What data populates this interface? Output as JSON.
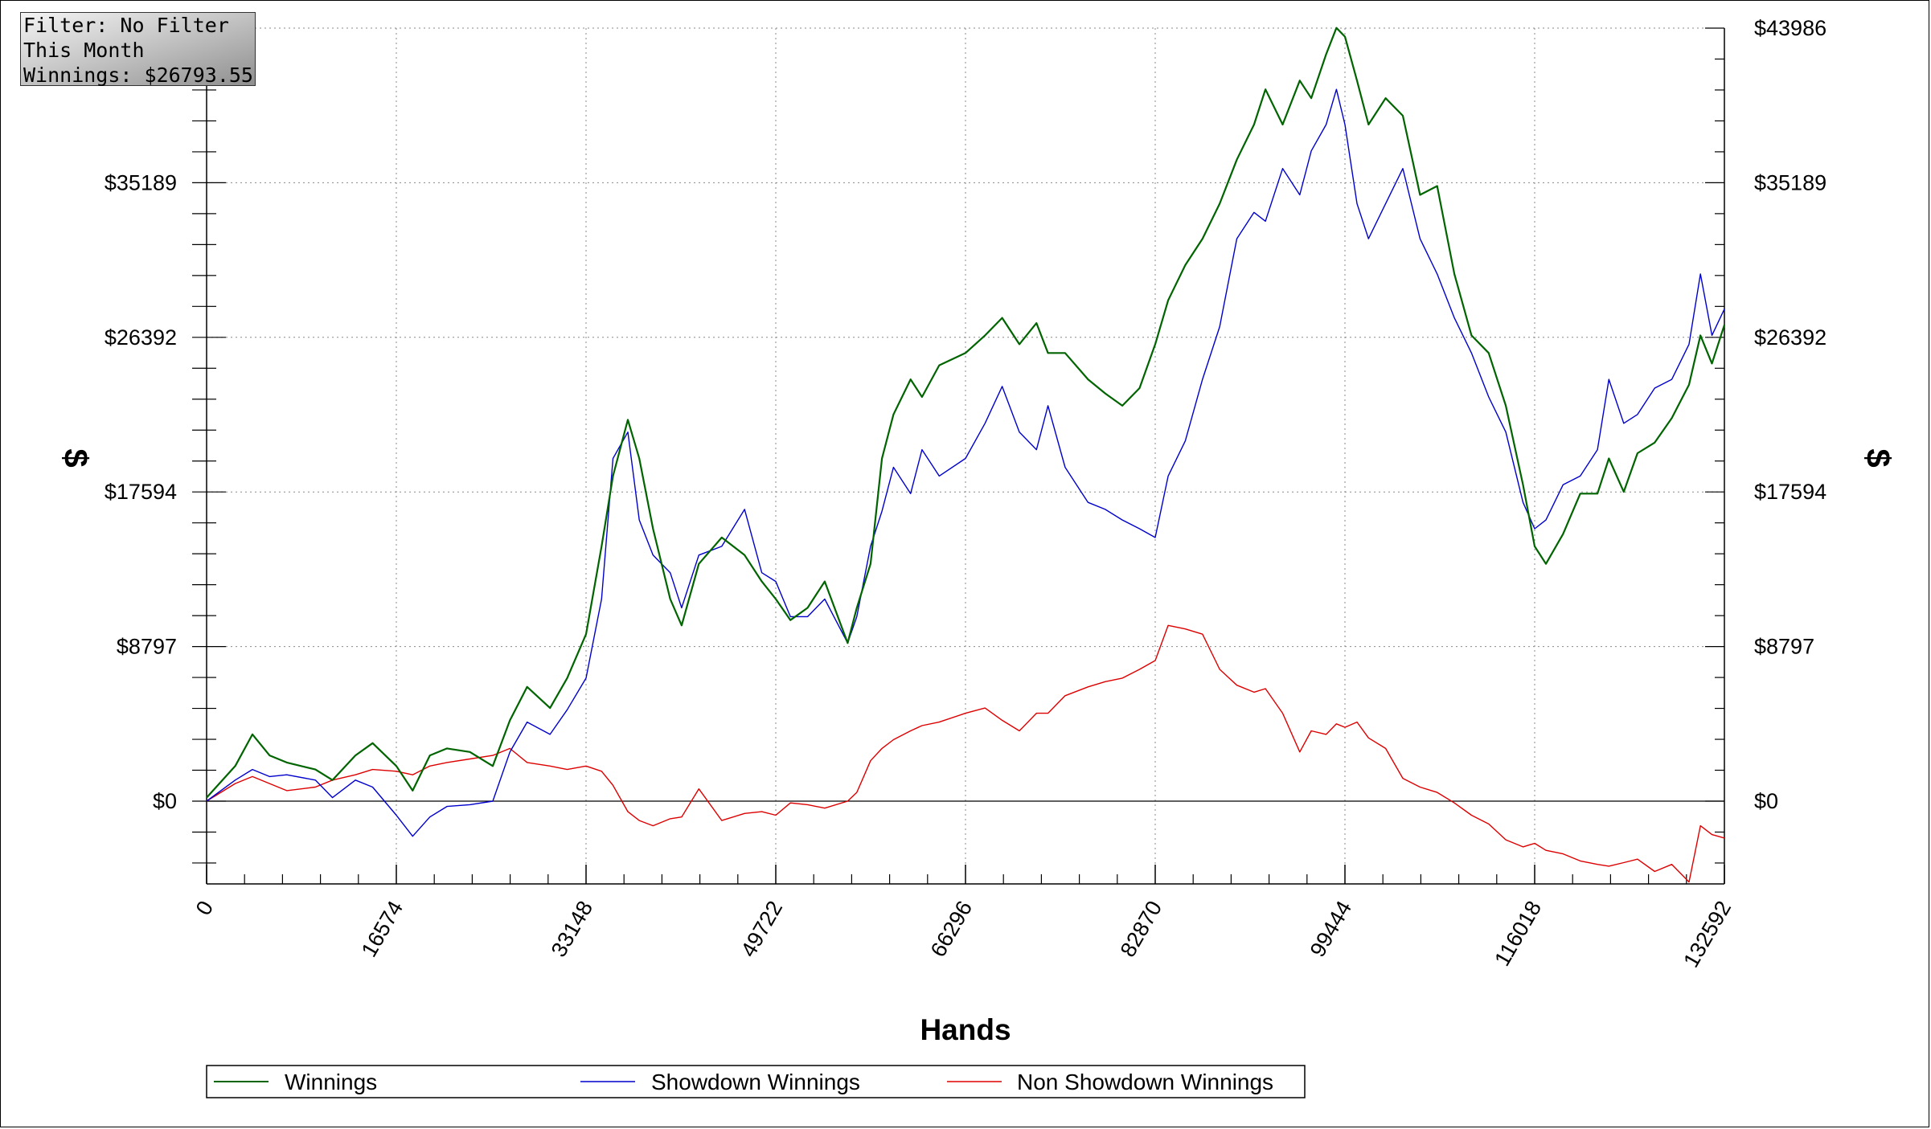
{
  "info_box": {
    "filter": "Filter: No Filter",
    "period": "This Month",
    "winnings": "Winnings: $26793.55"
  },
  "chart_data": {
    "type": "line",
    "title": "",
    "xlabel": "Hands",
    "ylabel": "$",
    "ylabel_right": "$",
    "xlim": [
      0,
      132592
    ],
    "ylim": [
      -4700,
      43986
    ],
    "x_ticks": [
      0,
      16574,
      33148,
      49722,
      66296,
      82870,
      99444,
      116018,
      132592
    ],
    "x_tick_labels": [
      "0",
      "16574",
      "33148",
      "49722",
      "66296",
      "82870",
      "99444",
      "116018",
      "132592"
    ],
    "y_ticks": [
      0,
      8797,
      17594,
      26392,
      35189,
      43986
    ],
    "y_tick_labels_left": [
      "$0",
      "$8797",
      "$17594",
      "$26392",
      "$35189"
    ],
    "y_tick_labels_right": [
      "$0",
      "$8797",
      "$17594",
      "$26392",
      "$35189",
      "$43986"
    ],
    "grid": true,
    "legend_position": "bottom",
    "colors": {
      "Winnings": "#006400",
      "Showdown Winnings": "#0000cc",
      "Non Showdown Winnings": "#dd0000"
    },
    "series": [
      {
        "name": "Winnings",
        "color": "#006400",
        "x": [
          0,
          2500,
          4000,
          5500,
          7000,
          9500,
          11000,
          13000,
          14500,
          16574,
          18000,
          19500,
          21000,
          23000,
          25000,
          26500,
          28000,
          30000,
          31500,
          33148,
          34500,
          35500,
          36800,
          37800,
          39000,
          40500,
          41500,
          43000,
          45000,
          47000,
          48500,
          49722,
          51000,
          52500,
          54000,
          56000,
          56800,
          58000,
          59000,
          60000,
          61500,
          62500,
          64000,
          66296,
          68000,
          69500,
          71000,
          72500,
          73500,
          75000,
          77000,
          78500,
          80000,
          81500,
          82870,
          84000,
          85500,
          87000,
          88500,
          90000,
          91500,
          92500,
          94000,
          95500,
          96500,
          97800,
          98700,
          99444,
          100500,
          101500,
          103000,
          104500,
          106000,
          107500,
          109000,
          110500,
          112000,
          113500,
          115000,
          116018,
          117000,
          118500,
          120000,
          121500,
          122500,
          123800,
          125000,
          126500,
          128000,
          129500,
          130500,
          131500,
          132592
        ],
        "y": [
          200,
          2000,
          3800,
          2600,
          2200,
          1800,
          1200,
          2600,
          3300,
          2000,
          600,
          2600,
          3000,
          2800,
          2000,
          4600,
          6500,
          5300,
          7000,
          9500,
          14500,
          18500,
          21700,
          19500,
          15500,
          11500,
          10000,
          13500,
          15000,
          14000,
          12500,
          11500,
          10300,
          11000,
          12500,
          9000,
          11000,
          13500,
          19500,
          22000,
          24000,
          23000,
          24800,
          25500,
          26500,
          27500,
          26000,
          27200,
          25500,
          25500,
          24000,
          23200,
          22500,
          23500,
          26000,
          28500,
          30500,
          32000,
          34000,
          36500,
          38500,
          40500,
          38500,
          41000,
          40000,
          42500,
          44000,
          43500,
          41000,
          38500,
          40000,
          39000,
          34500,
          35000,
          30000,
          26500,
          25500,
          22500,
          18000,
          14500,
          13500,
          15200,
          17500,
          17500,
          19500,
          17600,
          19800,
          20400,
          21800,
          23700,
          26500,
          24900,
          27100
        ]
      },
      {
        "name": "Showdown Winnings",
        "color": "#0000cc",
        "x": [
          0,
          2500,
          4000,
          5500,
          7000,
          9500,
          11000,
          13000,
          14500,
          16574,
          18000,
          19500,
          21000,
          23000,
          25000,
          26500,
          28000,
          30000,
          31500,
          33148,
          34500,
          35500,
          36800,
          37800,
          39000,
          40500,
          41500,
          43000,
          45000,
          47000,
          48500,
          49722,
          51000,
          52500,
          54000,
          56000,
          56800,
          58000,
          59000,
          60000,
          61500,
          62500,
          64000,
          66296,
          68000,
          69500,
          71000,
          72500,
          73500,
          75000,
          77000,
          78500,
          80000,
          81500,
          82870,
          84000,
          85500,
          87000,
          88500,
          90000,
          91500,
          92500,
          94000,
          95500,
          96500,
          97800,
          98700,
          99444,
          100500,
          101500,
          103000,
          104500,
          106000,
          107500,
          109000,
          110500,
          112000,
          113500,
          115000,
          116018,
          117000,
          118500,
          120000,
          121500,
          122500,
          123800,
          125000,
          126500,
          128000,
          129500,
          130500,
          131500,
          132592
        ],
        "y": [
          0,
          1200,
          1800,
          1400,
          1500,
          1200,
          200,
          1200,
          800,
          -800,
          -2000,
          -900,
          -300,
          -200,
          0,
          2800,
          4500,
          3800,
          5200,
          7000,
          11500,
          19500,
          21000,
          16000,
          14000,
          13000,
          11000,
          14000,
          14500,
          16600,
          13000,
          12500,
          10500,
          10500,
          11500,
          9000,
          10500,
          14500,
          16500,
          19000,
          17500,
          20000,
          18500,
          19500,
          21500,
          23600,
          21000,
          20000,
          22500,
          19000,
          17000,
          16600,
          16000,
          15500,
          15000,
          18500,
          20500,
          24000,
          27000,
          32000,
          33500,
          33000,
          36000,
          34500,
          37000,
          38500,
          40500,
          38500,
          34000,
          32000,
          34000,
          36000,
          32000,
          30000,
          27500,
          25500,
          23000,
          21000,
          17000,
          15500,
          16000,
          18000,
          18500,
          20000,
          24000,
          21500,
          22000,
          23500,
          24000,
          26000,
          30000,
          26500,
          28000
        ]
      },
      {
        "name": "Non Showdown Winnings",
        "color": "#dd0000",
        "x": [
          0,
          2500,
          4000,
          5500,
          7000,
          9500,
          11000,
          13000,
          14500,
          16574,
          18000,
          19500,
          21000,
          23000,
          25000,
          26500,
          28000,
          30000,
          31500,
          33148,
          34500,
          35500,
          36800,
          37800,
          39000,
          40500,
          41500,
          43000,
          45000,
          47000,
          48500,
          49722,
          51000,
          52500,
          54000,
          56000,
          56800,
          58000,
          59000,
          60000,
          61500,
          62500,
          64000,
          66296,
          68000,
          69500,
          71000,
          72500,
          73500,
          75000,
          77000,
          78500,
          80000,
          81500,
          82870,
          84000,
          85500,
          87000,
          88500,
          90000,
          91500,
          92500,
          94000,
          95500,
          96500,
          97800,
          98700,
          99444,
          100500,
          101500,
          103000,
          104500,
          106000,
          107500,
          109000,
          110500,
          112000,
          113500,
          115000,
          116018,
          117000,
          118500,
          120000,
          121500,
          122500,
          123800,
          125000,
          126500,
          128000,
          129500,
          130500,
          131500,
          132592
        ],
        "y": [
          0,
          1000,
          1400,
          1000,
          600,
          800,
          1200,
          1500,
          1800,
          1700,
          1500,
          2000,
          2200,
          2400,
          2600,
          3000,
          2200,
          2000,
          1800,
          2000,
          1700,
          900,
          -600,
          -1100,
          -1400,
          -1000,
          -900,
          700,
          -1100,
          -700,
          -600,
          -800,
          -100,
          -200,
          -400,
          0,
          500,
          2300,
          3000,
          3500,
          4000,
          4300,
          4500,
          5000,
          5300,
          4600,
          4000,
          5000,
          5000,
          6000,
          6500,
          6800,
          7000,
          7500,
          8000,
          10000,
          9800,
          9500,
          7500,
          6600,
          6200,
          6400,
          5000,
          2800,
          4000,
          3800,
          4400,
          4200,
          4500,
          3600,
          3000,
          1300,
          800,
          500,
          -100,
          -800,
          -1300,
          -2200,
          -2600,
          -2400,
          -2800,
          -3000,
          -3400,
          -3600,
          -3700,
          -3500,
          -3300,
          -4000,
          -3600,
          -4600,
          -1400,
          -1900,
          -2100
        ]
      }
    ]
  },
  "legend": {
    "items": [
      {
        "label": "Winnings",
        "color": "#006400"
      },
      {
        "label": "Showdown Winnings",
        "color": "#0000cc"
      },
      {
        "label": "Non Showdown Winnings",
        "color": "#dd0000"
      }
    ]
  }
}
